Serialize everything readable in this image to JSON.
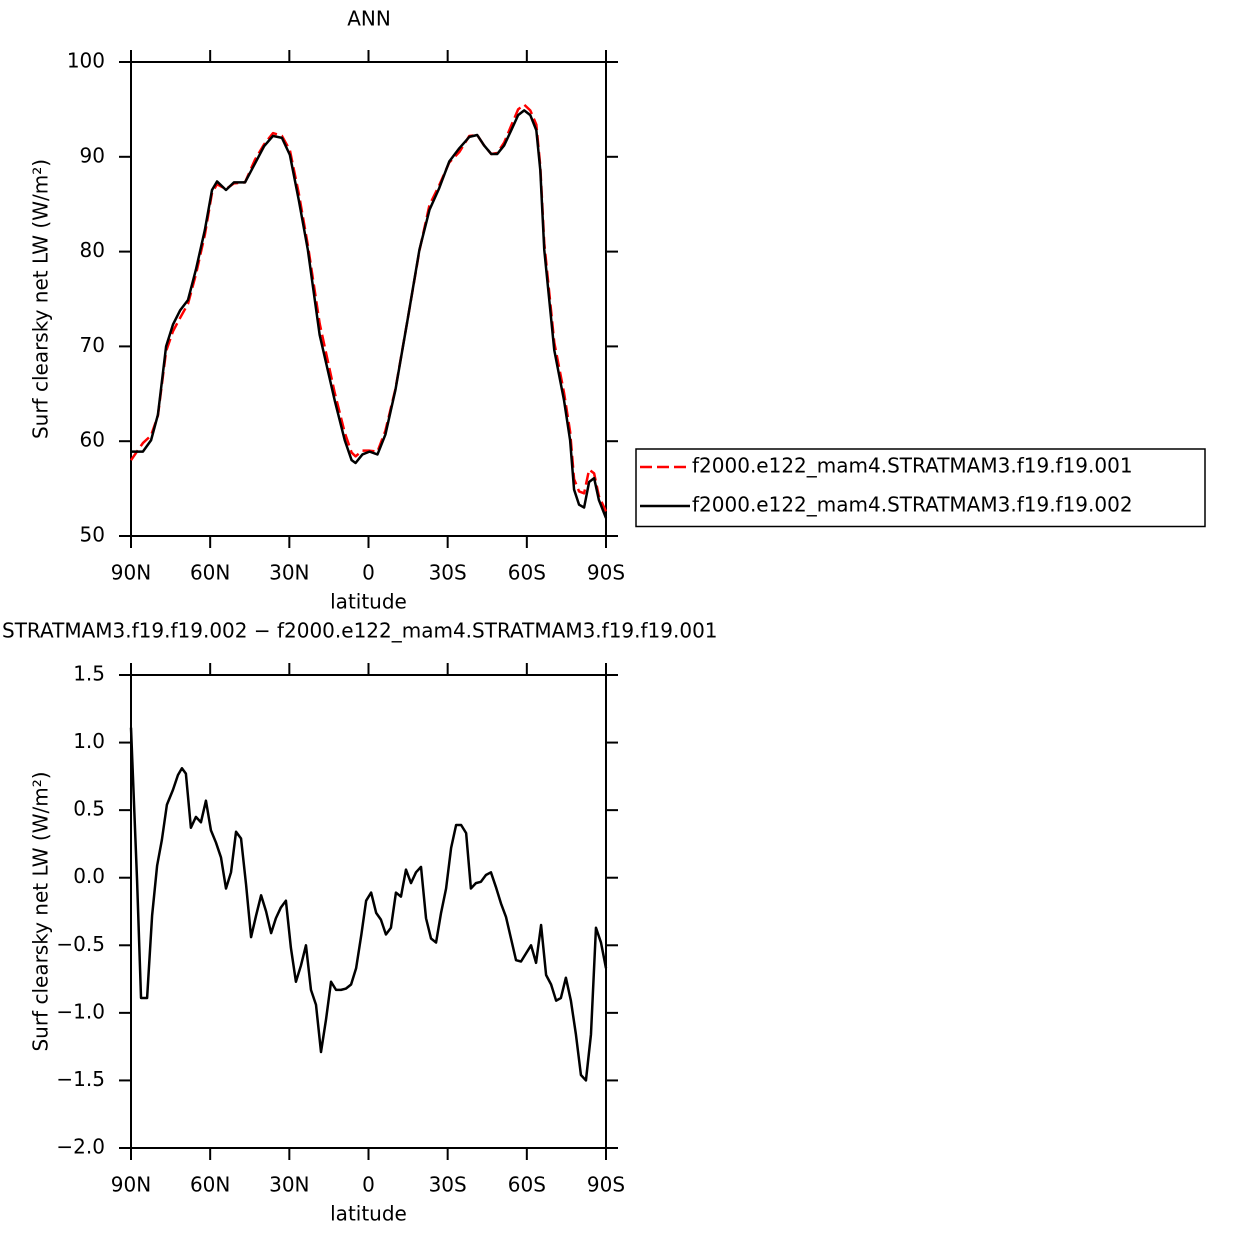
{
  "chart_data": [
    {
      "type": "line",
      "title": "ANN",
      "xlabel": "latitude",
      "ylabel": "Surf clearsky net LW (W/m²)",
      "x": [
        90,
        85.5,
        82.4,
        79.8,
        76.7,
        74.1,
        71.4,
        68.4,
        65.4,
        62,
        59.3,
        57.4,
        54,
        51,
        46.8,
        43,
        39.6,
        36.2,
        32.8,
        29.8,
        26.4,
        23,
        18.5,
        12.8,
        9,
        6.4,
        4.9,
        2.3,
        -0.4,
        -3.4,
        -6.4,
        -10.2,
        -14.8,
        -19.3,
        -23.1,
        -26.8,
        -30.6,
        -34.4,
        -38.2,
        -41.2,
        -43.8,
        -46.5,
        -48.8,
        -51.4,
        -54.1,
        -56.7,
        -59,
        -61.3,
        -63.6,
        -65.1,
        -66.6,
        -70.4,
        -74.1,
        -76.4,
        -77.9,
        -79.8,
        -81.7,
        -83.6,
        -85.5,
        -87.3,
        -90
      ],
      "series": [
        {
          "name": "f2000.e122_mam4.STRATMAM3.f19.f19.001",
          "color": "#ff0000",
          "linestyle": "dashed",
          "values": [
            58.0,
            59.8,
            60.6,
            62.7,
            69.5,
            71.6,
            73.0,
            74.5,
            77.6,
            81.8,
            86.2,
            87.1,
            86.6,
            87.2,
            87.3,
            89.7,
            91.3,
            92.5,
            92.2,
            90.7,
            86.1,
            80.7,
            72.4,
            65.1,
            60.9,
            58.8,
            58.4,
            59.0,
            59.0,
            58.9,
            61.1,
            65.5,
            72.8,
            80.1,
            84.9,
            87.0,
            89.4,
            90.5,
            92.2,
            92.3,
            91.2,
            90.3,
            90.4,
            91.5,
            93.3,
            95.0,
            95.5,
            94.9,
            93.4,
            89.0,
            80.9,
            70.4,
            65.1,
            61.0,
            56.0,
            54.7,
            54.5,
            57.0,
            56.6,
            54.2,
            52.6
          ]
        },
        {
          "name": "f2000.e122_mam4.STRATMAM3.f19.f19.002",
          "color": "#000000",
          "linestyle": "solid",
          "values": [
            58.9,
            58.9,
            60.1,
            62.8,
            70.0,
            72.3,
            73.8,
            74.9,
            78.1,
            82.3,
            86.5,
            87.4,
            86.5,
            87.3,
            87.3,
            89.3,
            91.1,
            92.2,
            92.0,
            90.2,
            85.4,
            80.2,
            71.2,
            64.3,
            60.1,
            58.0,
            57.7,
            58.6,
            58.9,
            58.6,
            60.7,
            65.4,
            72.8,
            80.2,
            84.4,
            86.7,
            89.5,
            90.9,
            92.1,
            92.3,
            91.2,
            90.3,
            90.3,
            91.2,
            92.8,
            94.4,
            94.9,
            94.4,
            92.8,
            88.6,
            80.2,
            69.6,
            64.3,
            60.1,
            54.9,
            53.3,
            53.0,
            55.7,
            56.1,
            53.8,
            51.9
          ]
        }
      ],
      "xlim": [
        90,
        -90
      ],
      "xticks": [
        {
          "value": 90,
          "label": "90N"
        },
        {
          "value": 60,
          "label": "60N"
        },
        {
          "value": 30,
          "label": "30N"
        },
        0,
        {
          "value": -30,
          "label": "30S"
        },
        {
          "value": -60,
          "label": "60S"
        },
        {
          "value": -90,
          "label": "90S"
        }
      ],
      "ylim": [
        50,
        100
      ],
      "yticks": [
        50,
        60,
        70,
        80,
        90,
        100
      ],
      "legend": "right"
    },
    {
      "type": "line",
      "title": "STRATMAM3.f19.f19.002 − f2000.e122_mam4.STRATMAM3.f19.f19.001",
      "xlabel": "latitude",
      "ylabel": "Surf clearsky net LW (W/m²)",
      "x": [
        90,
        87.7,
        86.2,
        83.9,
        82,
        80.1,
        78.3,
        76.4,
        74.1,
        72.2,
        70.7,
        69.2,
        67.3,
        65.4,
        63.5,
        61.6,
        59.7,
        57.8,
        55.9,
        54,
        52.1,
        50.2,
        48.3,
        46.4,
        44.5,
        42.6,
        40.7,
        38.8,
        36.9,
        35.1,
        33.2,
        31.3,
        29.4,
        27.5,
        25.6,
        23.7,
        21.8,
        19.9,
        18,
        16.1,
        14.2,
        12.3,
        10.4,
        8.5,
        6.6,
        4.7,
        2.7,
        0.9,
        -1.0,
        -2.9,
        -4.7,
        -6.6,
        -8.5,
        -10.4,
        -12.3,
        -14.2,
        -16.1,
        -18,
        -19.9,
        -21.8,
        -23.7,
        -25.6,
        -27.5,
        -29.4,
        -31.3,
        -33.2,
        -35.1,
        -37.0,
        -38.8,
        -40.7,
        -42.6,
        -44.5,
        -46.4,
        -48.3,
        -50.2,
        -52.1,
        -54,
        -55.9,
        -57.8,
        -59.7,
        -61.6,
        -63.5,
        -65.4,
        -67.3,
        -69.2,
        -71.1,
        -72.9,
        -74.8,
        -76.7,
        -78.6,
        -80.5,
        -82.4,
        -84.3,
        -86.2,
        -88.1,
        -90
      ],
      "values": [
        1.11,
        -0.02,
        -0.89,
        -0.89,
        -0.28,
        0.09,
        0.28,
        0.54,
        0.65,
        0.76,
        0.81,
        0.77,
        0.37,
        0.45,
        0.41,
        0.57,
        0.35,
        0.26,
        0.15,
        -0.08,
        0.04,
        0.34,
        0.29,
        -0.05,
        -0.44,
        -0.28,
        -0.13,
        -0.25,
        -0.41,
        -0.3,
        -0.22,
        -0.17,
        -0.52,
        -0.77,
        -0.65,
        -0.5,
        -0.83,
        -0.94,
        -1.29,
        -1.05,
        -0.77,
        -0.83,
        -0.83,
        -0.82,
        -0.79,
        -0.67,
        -0.42,
        -0.17,
        -0.11,
        -0.26,
        -0.31,
        -0.42,
        -0.37,
        -0.11,
        -0.14,
        0.06,
        -0.04,
        0.04,
        0.08,
        -0.3,
        -0.45,
        -0.48,
        -0.26,
        -0.08,
        0.22,
        0.39,
        0.39,
        0.33,
        -0.08,
        -0.04,
        -0.03,
        0.02,
        0.04,
        -0.07,
        -0.19,
        -0.29,
        -0.45,
        -0.61,
        -0.62,
        -0.56,
        -0.5,
        -0.63,
        -0.35,
        -0.72,
        -0.79,
        -0.91,
        -0.89,
        -0.74,
        -0.91,
        -1.16,
        -1.46,
        -1.5,
        -1.16,
        -0.37,
        -0.48,
        -0.67
      ],
      "color": "#000000",
      "xlim": [
        90,
        -90
      ],
      "xticks": [
        {
          "value": 90,
          "label": "90N"
        },
        {
          "value": 60,
          "label": "60N"
        },
        {
          "value": 30,
          "label": "30N"
        },
        0,
        {
          "value": -30,
          "label": "30S"
        },
        {
          "value": -60,
          "label": "60S"
        },
        {
          "value": -90,
          "label": "90S"
        }
      ],
      "ylim": [
        -2.0,
        1.5
      ],
      "yticks": [
        {
          "value": -2.0,
          "label": "−2.0"
        },
        {
          "value": -1.5,
          "label": "−1.5"
        },
        {
          "value": -1.0,
          "label": "−1.0"
        },
        {
          "value": -0.5,
          "label": "−0.5"
        },
        {
          "value": 0.0,
          "label": "0.0"
        },
        0.5,
        {
          "value": 1.0,
          "label": "1.0"
        },
        1.5
      ]
    }
  ]
}
